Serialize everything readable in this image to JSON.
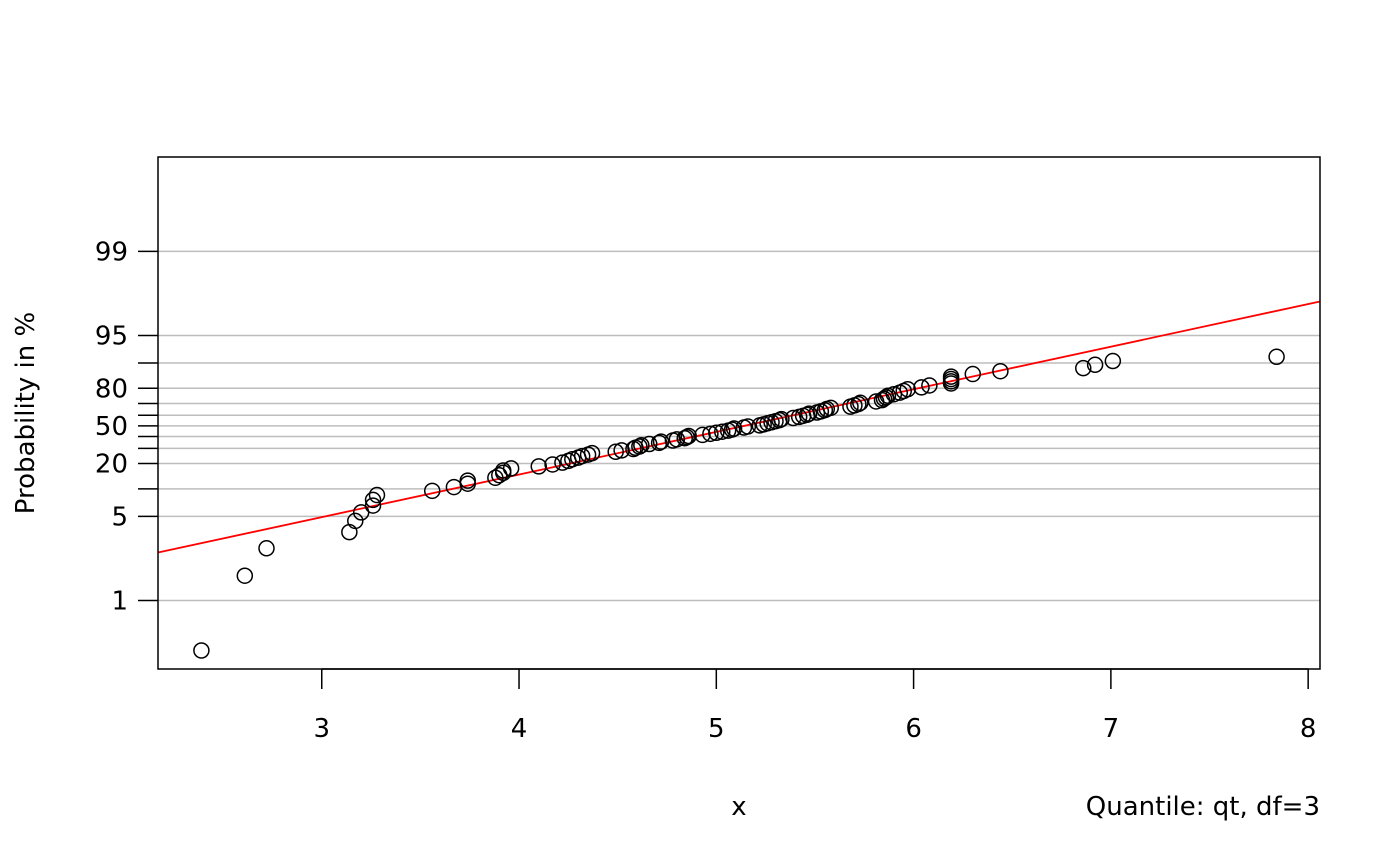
{
  "chart_data": {
    "type": "scatter",
    "title": "",
    "xlabel": "x",
    "ylabel": "Probability in %",
    "note": "Quantile: qt, df=3",
    "x_ticks": [
      3,
      4,
      5,
      6,
      7,
      8
    ],
    "y_labeled_ticks": [
      1,
      5,
      20,
      50,
      80,
      95,
      99
    ],
    "y_gridlines": [
      1,
      5,
      10,
      20,
      30,
      40,
      50,
      60,
      70,
      80,
      90,
      95,
      99
    ],
    "xlim": [
      2.17,
      8.06
    ],
    "ylim": [
      0.4,
      99.7
    ],
    "grid": true,
    "colors": {
      "points": "#000000",
      "fit_line": "#ff0000",
      "grid": "#bebebe"
    },
    "fit_line": {
      "x": [
        2.17,
        8.06
      ],
      "y": [
        2.3,
        97.6
      ]
    },
    "points": [
      {
        "x": 2.39,
        "y": 0.5
      },
      {
        "x": 2.61,
        "y": 1.5
      },
      {
        "x": 2.72,
        "y": 2.5
      },
      {
        "x": 3.14,
        "y": 3.5
      },
      {
        "x": 3.17,
        "y": 4.5
      },
      {
        "x": 3.2,
        "y": 5.5
      },
      {
        "x": 3.26,
        "y": 6.5
      },
      {
        "x": 3.26,
        "y": 7.5
      },
      {
        "x": 3.28,
        "y": 8.5
      },
      {
        "x": 3.56,
        "y": 9.5
      },
      {
        "x": 3.67,
        "y": 10.5
      },
      {
        "x": 3.74,
        "y": 11.5
      },
      {
        "x": 3.74,
        "y": 12.5
      },
      {
        "x": 3.88,
        "y": 13.5
      },
      {
        "x": 3.9,
        "y": 14.5
      },
      {
        "x": 3.92,
        "y": 15.5
      },
      {
        "x": 3.92,
        "y": 16.5
      },
      {
        "x": 3.96,
        "y": 17.5
      },
      {
        "x": 4.1,
        "y": 18.5
      },
      {
        "x": 4.17,
        "y": 19.5
      },
      {
        "x": 4.22,
        "y": 20.5
      },
      {
        "x": 4.25,
        "y": 21.5
      },
      {
        "x": 4.27,
        "y": 22.5
      },
      {
        "x": 4.3,
        "y": 23.5
      },
      {
        "x": 4.32,
        "y": 24.5
      },
      {
        "x": 4.35,
        "y": 25.5
      },
      {
        "x": 4.37,
        "y": 26.5
      },
      {
        "x": 4.49,
        "y": 27.5
      },
      {
        "x": 4.52,
        "y": 28.5
      },
      {
        "x": 4.58,
        "y": 29.5
      },
      {
        "x": 4.59,
        "y": 30.5
      },
      {
        "x": 4.61,
        "y": 31.5
      },
      {
        "x": 4.62,
        "y": 32.5
      },
      {
        "x": 4.66,
        "y": 33.5
      },
      {
        "x": 4.71,
        "y": 34.5
      },
      {
        "x": 4.72,
        "y": 35.5
      },
      {
        "x": 4.78,
        "y": 36.5
      },
      {
        "x": 4.8,
        "y": 37.5
      },
      {
        "x": 4.84,
        "y": 38.5
      },
      {
        "x": 4.85,
        "y": 39.5
      },
      {
        "x": 4.86,
        "y": 40.5
      },
      {
        "x": 4.93,
        "y": 41.5
      },
      {
        "x": 4.97,
        "y": 42.5
      },
      {
        "x": 5.0,
        "y": 43.5
      },
      {
        "x": 5.03,
        "y": 44.5
      },
      {
        "x": 5.06,
        "y": 45.5
      },
      {
        "x": 5.08,
        "y": 46.5
      },
      {
        "x": 5.09,
        "y": 47.5
      },
      {
        "x": 5.14,
        "y": 48.5
      },
      {
        "x": 5.16,
        "y": 49.5
      },
      {
        "x": 5.22,
        "y": 50.5
      },
      {
        "x": 5.24,
        "y": 51.5
      },
      {
        "x": 5.26,
        "y": 52.5
      },
      {
        "x": 5.28,
        "y": 53.5
      },
      {
        "x": 5.3,
        "y": 54.5
      },
      {
        "x": 5.32,
        "y": 55.5
      },
      {
        "x": 5.33,
        "y": 56.5
      },
      {
        "x": 5.39,
        "y": 57.5
      },
      {
        "x": 5.42,
        "y": 58.5
      },
      {
        "x": 5.44,
        "y": 59.5
      },
      {
        "x": 5.46,
        "y": 60.5
      },
      {
        "x": 5.47,
        "y": 61.5
      },
      {
        "x": 5.51,
        "y": 62.5
      },
      {
        "x": 5.53,
        "y": 63.5
      },
      {
        "x": 5.55,
        "y": 64.5
      },
      {
        "x": 5.56,
        "y": 65.5
      },
      {
        "x": 5.58,
        "y": 66.5
      },
      {
        "x": 5.68,
        "y": 67.5
      },
      {
        "x": 5.7,
        "y": 68.5
      },
      {
        "x": 5.72,
        "y": 69.5
      },
      {
        "x": 5.73,
        "y": 70.5
      },
      {
        "x": 5.81,
        "y": 71.5
      },
      {
        "x": 5.84,
        "y": 72.5
      },
      {
        "x": 5.85,
        "y": 73.5
      },
      {
        "x": 5.86,
        "y": 74.5
      },
      {
        "x": 5.87,
        "y": 75.5
      },
      {
        "x": 5.9,
        "y": 76.5
      },
      {
        "x": 5.93,
        "y": 77.5
      },
      {
        "x": 5.95,
        "y": 78.5
      },
      {
        "x": 5.97,
        "y": 79.5
      },
      {
        "x": 6.04,
        "y": 80.5
      },
      {
        "x": 6.08,
        "y": 81.5
      },
      {
        "x": 6.19,
        "y": 82.5
      },
      {
        "x": 6.19,
        "y": 83.5
      },
      {
        "x": 6.19,
        "y": 84.5
      },
      {
        "x": 6.19,
        "y": 85.5
      },
      {
        "x": 6.3,
        "y": 86.5
      },
      {
        "x": 6.44,
        "y": 87.5
      },
      {
        "x": 6.86,
        "y": 88.5
      },
      {
        "x": 6.92,
        "y": 89.5
      },
      {
        "x": 7.01,
        "y": 90.5
      },
      {
        "x": 7.84,
        "y": 91.5
      }
    ]
  }
}
